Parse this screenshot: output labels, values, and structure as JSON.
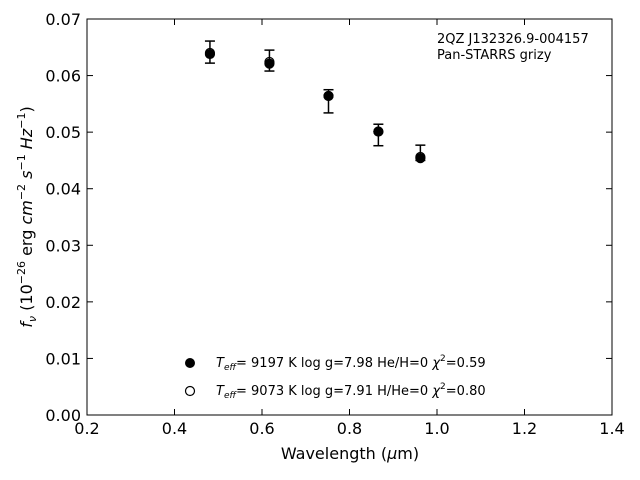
{
  "chart_data": {
    "type": "scatter",
    "title": "",
    "xlabel": "Wavelength (μm)",
    "ylabel": "f_ν (10^-26 erg cm^-2 s^-1 Hz^-1)",
    "xlim": [
      0.2,
      1.4
    ],
    "ylim": [
      0.0,
      0.07
    ],
    "xticks": [
      "0.2",
      "0.4",
      "0.6",
      "0.8",
      "1.0",
      "1.2",
      "1.4"
    ],
    "yticks": [
      "0.00",
      "0.01",
      "0.02",
      "0.03",
      "0.04",
      "0.05",
      "0.06",
      "0.07"
    ],
    "grid": false,
    "annotation": {
      "object": "2QZ J132326.9-004157",
      "survey": "Pan-STARRS grizy"
    },
    "observed": {
      "x": [
        0.481,
        0.617,
        0.752,
        0.866,
        0.962
      ],
      "y": [
        0.064,
        0.0625,
        0.0565,
        0.0502,
        0.0458
      ],
      "err_low": [
        0.0622,
        0.0608,
        0.0534,
        0.0476,
        0.045
      ],
      "err_high": [
        0.0661,
        0.0645,
        0.0575,
        0.0514,
        0.0477
      ]
    },
    "series": [
      {
        "name": "T_eff= 9197 K log g=7.98 He/H=0 χ²=0.59",
        "marker": "filled-circle",
        "x": [
          0.481,
          0.617,
          0.752,
          0.866,
          0.962
        ],
        "y": [
          0.0638,
          0.0621,
          0.0564,
          0.0501,
          0.0454
        ]
      },
      {
        "name": "T_eff= 9073 K log g=7.91 H/He=0 χ²=0.80",
        "marker": "open-circle",
        "x": [
          0.481,
          0.617,
          0.752,
          0.866,
          0.962
        ],
        "y": [
          0.064,
          0.0624,
          0.0564,
          0.0501,
          0.0456
        ]
      }
    ],
    "legend": {
      "placement": "bottom-center",
      "entries": [
        {
          "teff": "9197 K",
          "logg": "log g=7.98",
          "comp": "He/H=0",
          "chi2": "=0.59"
        },
        {
          "teff": "9073 K",
          "logg": "log g=7.91",
          "comp": "H/He=0",
          "chi2": "=0.80"
        }
      ]
    }
  }
}
